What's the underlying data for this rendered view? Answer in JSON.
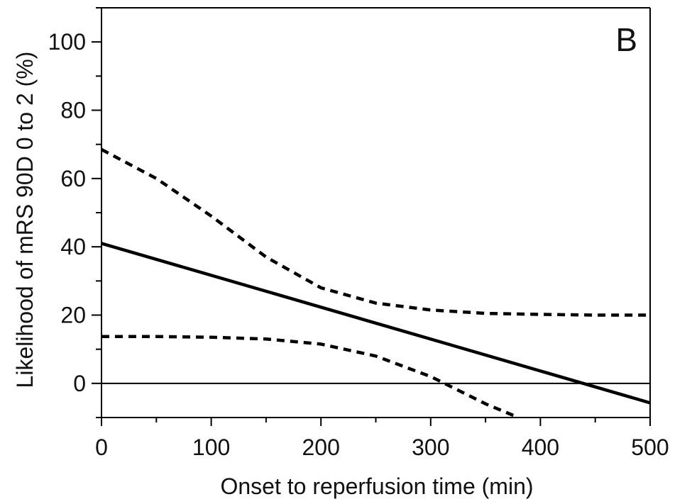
{
  "chart_data": {
    "type": "line",
    "panel_label": "B",
    "title": "",
    "xlabel": "Onset to reperfusion time (min)",
    "ylabel": "Likelihood of mRS 90D 0 to 2 (%)",
    "xlim": [
      0,
      500
    ],
    "ylim": [
      -10,
      110
    ],
    "x_ticks": [
      0,
      100,
      200,
      300,
      400,
      500
    ],
    "x_tick_labels": [
      "0",
      "100",
      "200",
      "300",
      "400",
      "500"
    ],
    "y_ticks": [
      0,
      20,
      40,
      60,
      80,
      100
    ],
    "y_tick_labels": [
      "0",
      "20",
      "40",
      "60",
      "80",
      "100"
    ],
    "reference_line_y": 0,
    "grid": false,
    "series": [
      {
        "style": "solid",
        "x": [
          0,
          500
        ],
        "y": [
          41,
          -5.7
        ]
      },
      {
        "style": "dashed",
        "x": [
          0,
          50,
          100,
          150,
          200,
          250,
          300,
          350,
          400,
          450,
          500
        ],
        "y": [
          68.5,
          60,
          49,
          37,
          28,
          23.5,
          21.5,
          20.5,
          20.2,
          20,
          20
        ]
      },
      {
        "style": "dashed",
        "x": [
          0,
          50,
          100,
          150,
          200,
          250,
          300,
          350,
          380
        ],
        "y": [
          13.7,
          13.7,
          13.5,
          13,
          11.5,
          8,
          2,
          -6,
          -10
        ]
      }
    ]
  }
}
